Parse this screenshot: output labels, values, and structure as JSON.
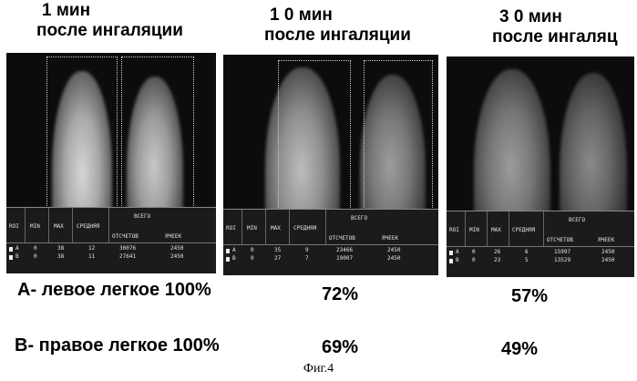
{
  "panels": [
    {
      "time": "1 мин",
      "subtitle": "после ингаляции",
      "table": {
        "headers": [
          "ROI",
          "MIN",
          "MAX",
          "СРЕДНЯЯ",
          "ВСЕГО",
          "ОТСЧЕТОВ",
          "ЯЧЕЕК"
        ],
        "rows": [
          [
            "A",
            "0",
            "38",
            "12",
            "30076",
            "2450"
          ],
          [
            "B",
            "0",
            "38",
            "11",
            "27641",
            "2450"
          ]
        ]
      }
    },
    {
      "time": "1 0 мин",
      "subtitle": "после ингаляции",
      "table": {
        "headers": [
          "ROI",
          "MIN",
          "MAX",
          "СРЕДНЯЯ",
          "ВСЕГО",
          "ОТСЧЕТОВ",
          "ЯЧЕЕК"
        ],
        "rows": [
          [
            "A",
            "0",
            "35",
            "9",
            "23466",
            "2450"
          ],
          [
            "B",
            "0",
            "27",
            "7",
            "19007",
            "2450"
          ]
        ]
      }
    },
    {
      "time": "3 0 мин",
      "subtitle": "после ингаляц",
      "table": {
        "headers": [
          "ROI",
          "MIN",
          "MAX",
          "СРЕДНЯЯ",
          "ВСЕГО",
          "ОТСЧЕТОВ",
          "ЯЧЕЕК"
        ],
        "rows": [
          [
            "A",
            "0",
            "26",
            "6",
            "15997",
            "2450"
          ],
          [
            "B",
            "0",
            "23",
            "5",
            "13529",
            "2450"
          ]
        ]
      }
    }
  ],
  "results": {
    "left_label": "A- левое легкое 100%",
    "left_values": [
      "72%",
      "57%"
    ],
    "right_label": "B- правое легкое 100%",
    "right_values": [
      "69%",
      "49%"
    ]
  },
  "caption": "Фиг.4"
}
